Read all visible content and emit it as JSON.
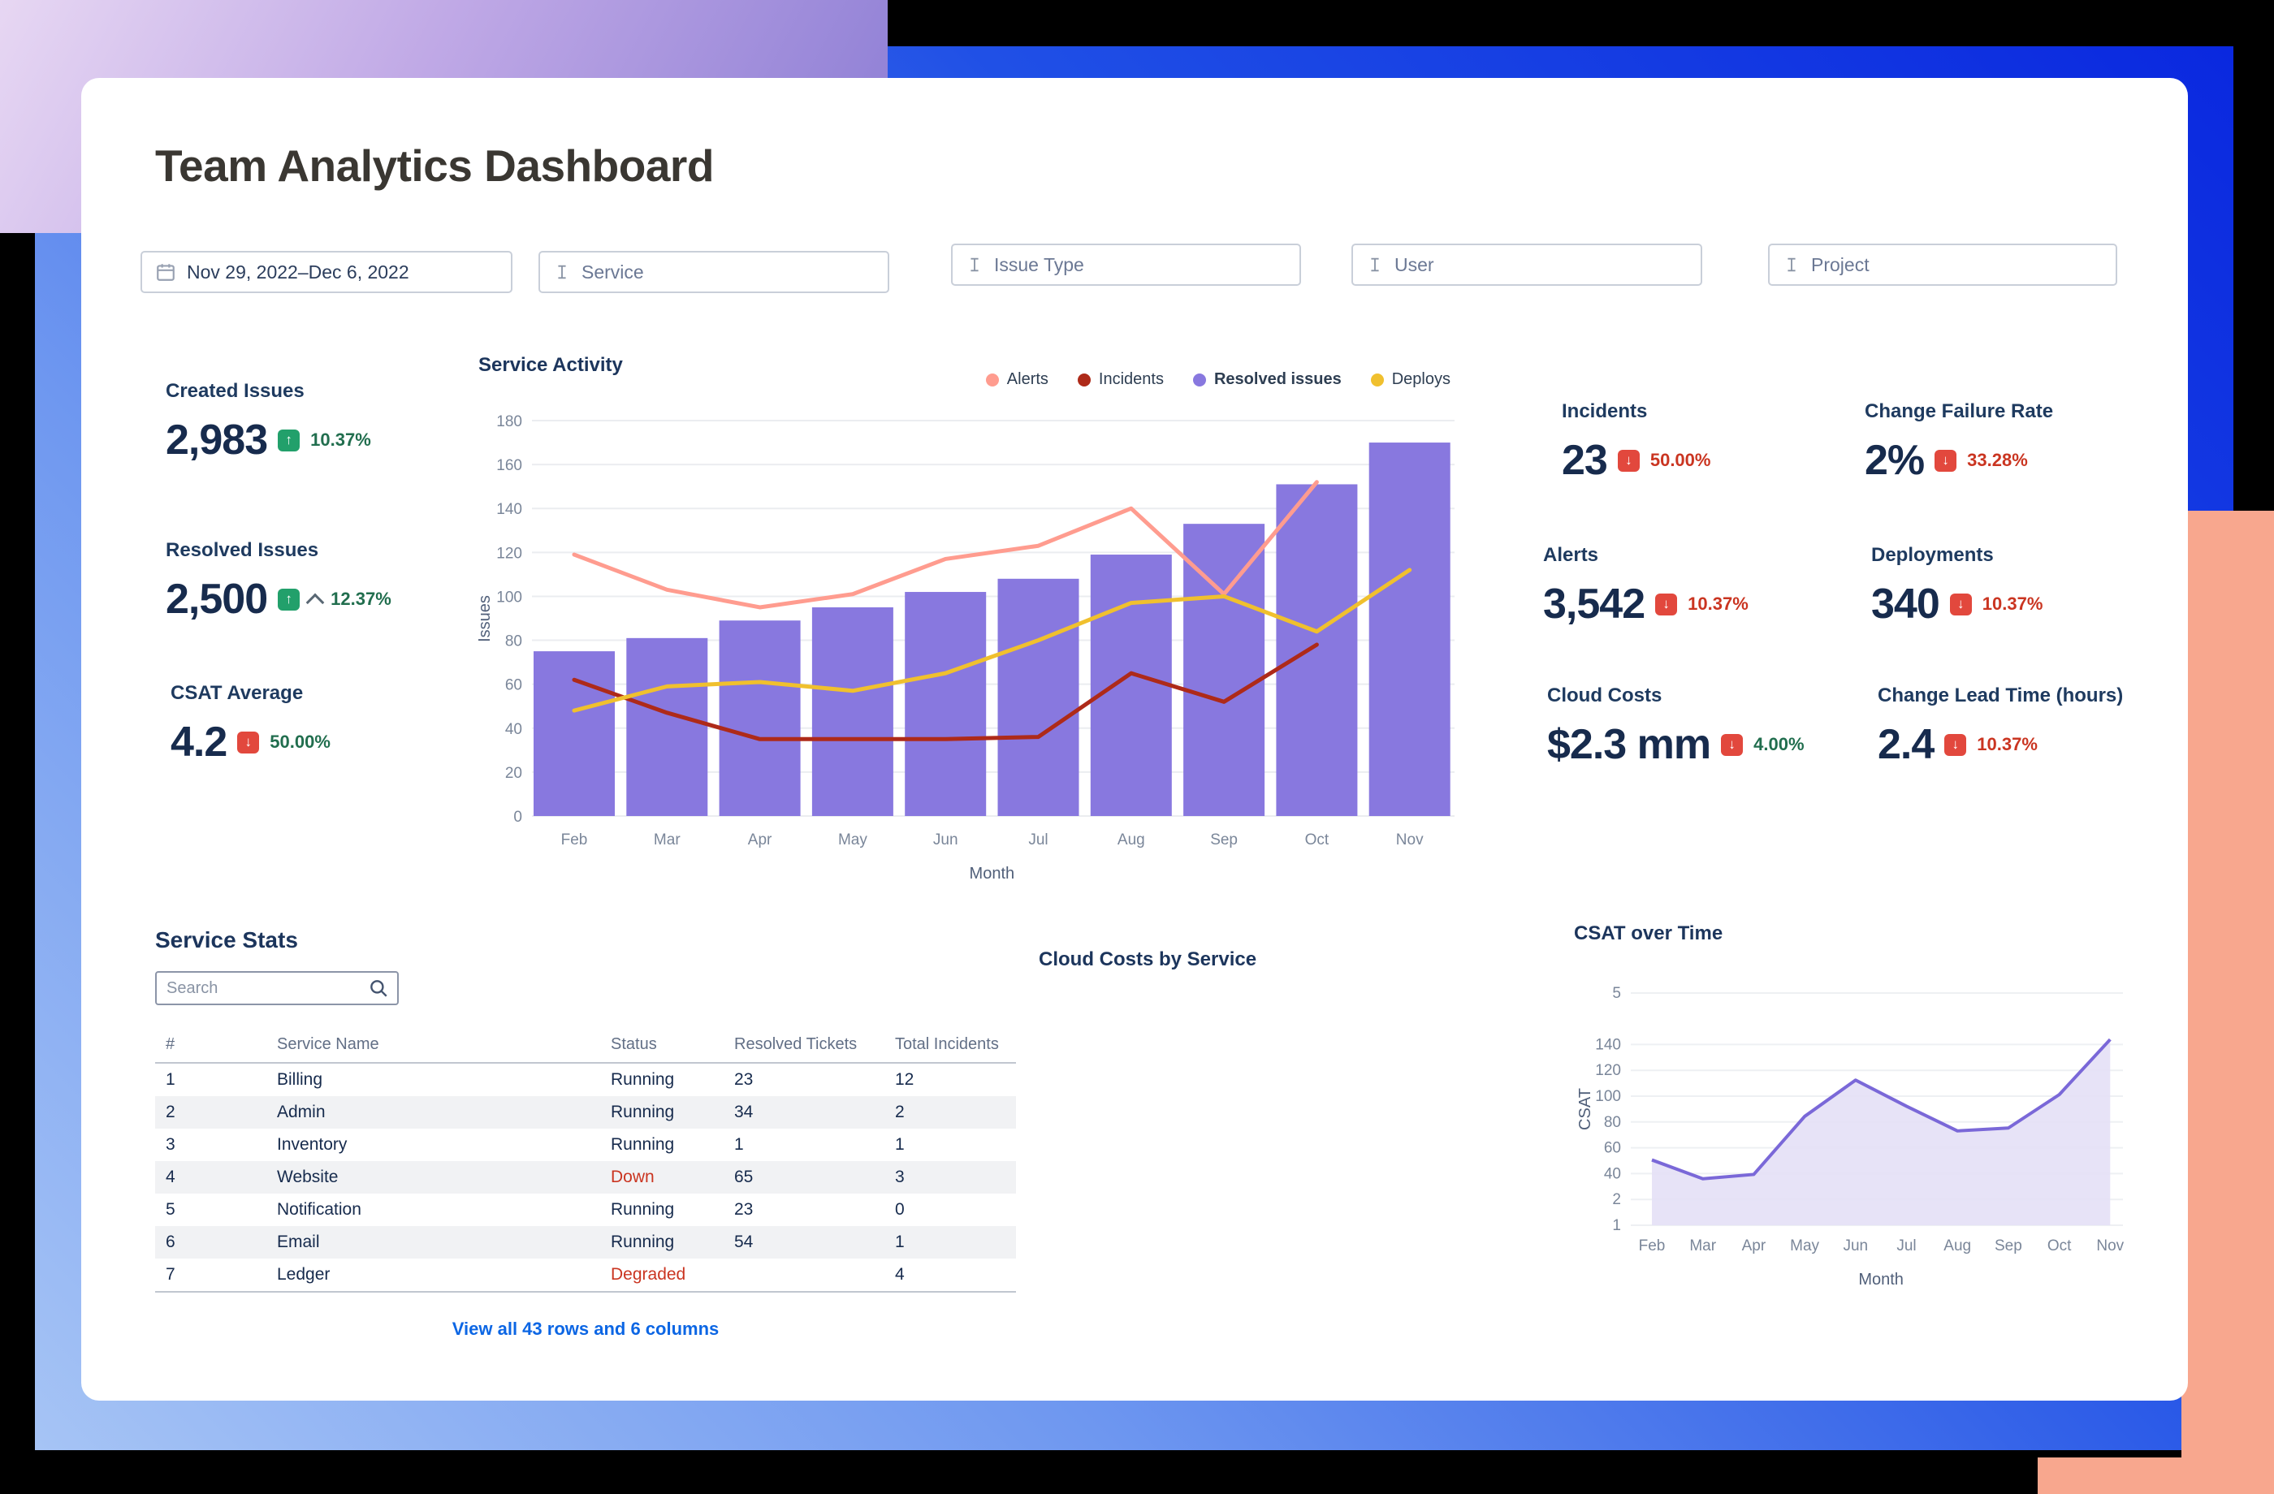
{
  "title": "Team Analytics Dashboard",
  "filters": [
    {
      "label": "Nov 29, 2022–Dec 6, 2022",
      "icon": "calendar"
    },
    {
      "label": "Service",
      "icon": "field"
    },
    {
      "label": "Issue Type",
      "icon": "field"
    },
    {
      "label": "User",
      "icon": "field"
    },
    {
      "label": "Project",
      "icon": "field"
    }
  ],
  "kpis_left": [
    {
      "label": "Created Issues",
      "value": "2,983",
      "trend": "up",
      "delta": "10.37%",
      "delta_color": "green"
    },
    {
      "label": "Resolved Issues",
      "value": "2,500",
      "trend": "up",
      "delta": "12.37%",
      "delta_color": "green"
    },
    {
      "label": "CSAT Average",
      "value": "4.2",
      "trend": "down",
      "delta": "50.00%",
      "delta_color": "green"
    }
  ],
  "kpis_right": [
    {
      "label": "Incidents",
      "value": "23",
      "trend": "down",
      "delta": "50.00%",
      "delta_color": "red"
    },
    {
      "label": "Change Failure Rate",
      "value": "2%",
      "trend": "down",
      "delta": "33.28%",
      "delta_color": "red"
    },
    {
      "label": "Alerts",
      "value": "3,542",
      "trend": "down",
      "delta": "10.37%",
      "delta_color": "red"
    },
    {
      "label": "Deployments",
      "value": "340",
      "trend": "down",
      "delta": "10.37%",
      "delta_color": "red"
    },
    {
      "label": "Cloud Costs",
      "value": "$2.3 mm",
      "trend": "down",
      "delta": "4.00%",
      "delta_color": "green"
    },
    {
      "label": "Change Lead Time (hours)",
      "value": "2.4",
      "trend": "down",
      "delta": "10.37%",
      "delta_color": "red"
    }
  ],
  "table": {
    "title": "Service Stats",
    "search_placeholder": "Search",
    "columns": [
      "#",
      "Service Name",
      "Status",
      "Resolved Tickets",
      "Total Incidents"
    ],
    "rows": [
      [
        "1",
        "Billing",
        "Running",
        "23",
        "12"
      ],
      [
        "2",
        "Admin",
        "Running",
        "34",
        "2"
      ],
      [
        "3",
        "Inventory",
        "Running",
        "1",
        "1"
      ],
      [
        "4",
        "Website",
        "Down",
        "65",
        "3"
      ],
      [
        "5",
        "Notification",
        "Running",
        "23",
        "0"
      ],
      [
        "6",
        "Email",
        "Running",
        "54",
        "1"
      ],
      [
        "7",
        "Ledger",
        "Degraded",
        "",
        "4"
      ]
    ],
    "down_statuses": [
      "Down",
      "Degraded"
    ],
    "footer_link": "View all 43 rows and 6 columns"
  },
  "chart_data": [
    {
      "id": "service-activity",
      "type": "bar",
      "title": "Service Activity",
      "xlabel": "Month",
      "ylabel": "Issues",
      "categories": [
        "Feb",
        "Mar",
        "Apr",
        "May",
        "Jun",
        "Jul",
        "Aug",
        "Sep",
        "Oct",
        "Nov"
      ],
      "ylim": [
        0,
        180
      ],
      "yticks": [
        0,
        20,
        40,
        60,
        80,
        100,
        120,
        140,
        160,
        180
      ],
      "grid": true,
      "legend_position": "top-right",
      "series": [
        {
          "name": "Alerts",
          "type": "line",
          "color": "#FF9C8F",
          "values": [
            119,
            103,
            95,
            101,
            117,
            123,
            140,
            101,
            152,
            null
          ]
        },
        {
          "name": "Incidents",
          "type": "line",
          "color": "#AE2A19",
          "values": [
            62,
            47,
            35,
            35,
            35,
            36,
            65,
            52,
            78,
            null
          ]
        },
        {
          "name": "Resolved issues",
          "type": "bar",
          "color": "#8878DF",
          "bold": true,
          "values": [
            75,
            81,
            89,
            95,
            102,
            108,
            119,
            133,
            151,
            170
          ]
        },
        {
          "name": "Deploys",
          "type": "line",
          "color": "#F0C02E",
          "values": [
            48,
            59,
            61,
            57,
            65,
            80,
            97,
            100,
            84,
            112
          ]
        }
      ]
    },
    {
      "id": "csat-over-time",
      "type": "area",
      "title": "CSAT over Time",
      "xlabel": "Month",
      "ylabel": "CSAT",
      "categories": [
        "Feb",
        "Mar",
        "Apr",
        "May",
        "Jun",
        "Jul",
        "Aug",
        "Sep",
        "Oct",
        "Nov"
      ],
      "ytick_labels": [
        "5",
        "140",
        "120",
        "100",
        "80",
        "60",
        "40",
        "2",
        "1"
      ],
      "values": [
        45,
        32,
        35,
        75,
        100,
        82,
        65,
        67,
        90,
        128
      ],
      "color": "#7A68D8",
      "fill": "#E4E0F6",
      "grid": true
    },
    {
      "id": "cloud-costs-by-service",
      "type": "none",
      "title": "Cloud Costs by Service",
      "values": []
    }
  ],
  "colors": {
    "accent_purple": "#8878DF",
    "green_badge": "#22A06B",
    "red_badge": "#E2483D",
    "green_text": "#216E4E",
    "red_text": "#CA3521",
    "link_blue": "#0C66E4",
    "navy": "#172B4D",
    "salmon_block": "#F8A78E"
  }
}
